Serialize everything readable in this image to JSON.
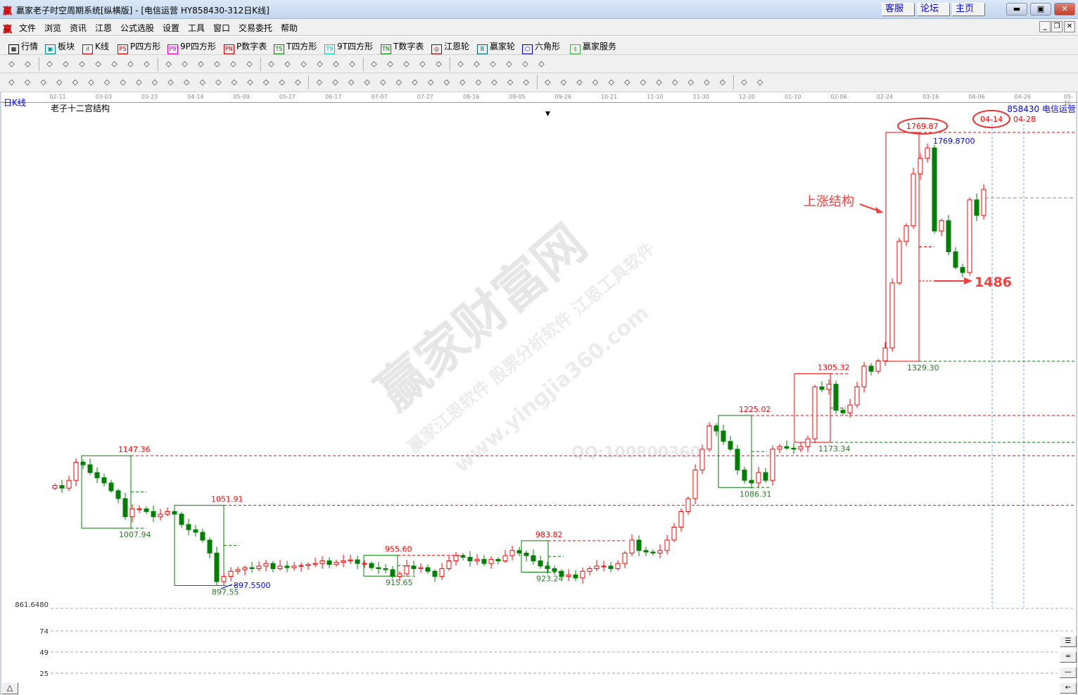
{
  "window": {
    "title": "赢家老子时空周期系统[纵横版] - [电信运营  HY858430-312日K线]",
    "logo": "赢",
    "links": [
      "客服",
      "论坛",
      "主页"
    ],
    "controls": [
      "minimize",
      "maximize",
      "close"
    ]
  },
  "menu": {
    "logo": "赢",
    "items": [
      "文件",
      "浏览",
      "资讯",
      "江恩",
      "公式选股",
      "设置",
      "工具",
      "窗口",
      "交易委托",
      "帮助"
    ]
  },
  "toolbar1": [
    {
      "label": "行情",
      "icon": "quote-table-icon",
      "tag": "▦"
    },
    {
      "label": "板块",
      "icon": "sector-grid-icon",
      "tag": "▣"
    },
    {
      "label": "K线",
      "icon": "candlestick-icon",
      "tag": "ıl"
    },
    {
      "label": "P四方形",
      "icon": "ps-icon",
      "tag": "PS"
    },
    {
      "label": "9P四方形",
      "icon": "p9-icon",
      "tag": "P9"
    },
    {
      "label": "P数字表",
      "icon": "pn-icon",
      "tag": "PN"
    },
    {
      "label": "T四方形",
      "icon": "ts-icon",
      "tag": "TS"
    },
    {
      "label": "9T四方形",
      "icon": "t9-icon",
      "tag": "T9"
    },
    {
      "label": "T数字表",
      "icon": "tn-icon",
      "tag": "TN"
    },
    {
      "label": "江恩轮",
      "icon": "gann-wheel-icon",
      "tag": "◎"
    },
    {
      "label": "赢家轮",
      "icon": "big-wheel-icon",
      "tag": "B"
    },
    {
      "label": "六角形",
      "icon": "hexagon-icon",
      "tag": "⬡"
    },
    {
      "label": "赢家服务",
      "icon": "dollar-icon",
      "tag": "$"
    }
  ],
  "toolbar2_icons": [
    "layout-icon",
    "dropdown-icon",
    "wheel-icon",
    "doc-icon",
    "chart-a-icon",
    "chart-b-icon",
    "chart-c-icon",
    "bar-icon",
    "dropdown-icon",
    "cycle-icon",
    "flag-icon",
    "first-icon",
    "last-icon",
    "prev-icon",
    "next-icon",
    "diamond-1-icon",
    "diamond-2-icon",
    "diamond-3-icon",
    "diamond-4-icon",
    "diamond-5-icon",
    "diamond-6-icon",
    "hand-icon",
    "crosshair-icon",
    "zigzag-icon",
    "gift-icon",
    "globe-icon",
    "calendar-icon",
    "calculator-icon",
    "notes-icon",
    "save-icon",
    "tools-icon",
    "truck-icon"
  ],
  "toolbar3_icons": [
    "pen-icon",
    "grid-icon",
    "fork-1-icon",
    "fork-2-icon",
    "fork-3-icon",
    "fork-4-icon",
    "fork-5-icon",
    "fan-icon",
    "circle-icon",
    "bars-icon",
    "fork-6-icon",
    "fork-7-icon",
    "spiral-icon",
    "star-icon",
    "box-icon",
    "angle-icon",
    "fork-8-icon",
    "fork-9-icon",
    "table-icon",
    "comb-icon",
    "square-icon",
    "lines-1-icon",
    "lines-2-icon",
    "lines-3-icon",
    "lines-4-icon",
    "curve-icon",
    "wave-icon",
    "grid-2-icon",
    "grid-3-icon",
    "hatch-icon",
    "ruler-icon",
    "percent-1-icon",
    "percent-icon",
    "lines-5-icon",
    "coin-1-icon",
    "coin-2-icon",
    "coin-3-icon",
    "coin-4-icon",
    "coin-5-icon",
    "lines-6-icon",
    "lines-7-icon",
    "lines-8-icon",
    "lines-9-icon",
    "table-2-icon",
    "trend-icon",
    "yinyang-icon",
    "infinity-icon"
  ],
  "chart": {
    "period": "日K线",
    "indicator": "老子十二宫结构",
    "stock": "858430 电信运营",
    "watermark": {
      "main": "赢家财富网",
      "sub": "赢家江恩软件 股票分析软件 江恩工具软件",
      "url": "www.yingjia360.com",
      "qq": "QQ:100800360"
    },
    "dropdown_marker": "▼",
    "bottom_button": "△",
    "right_buttons": [
      "zoom-3-icon",
      "zoom-2-icon",
      "zoom-1-icon",
      "back-icon"
    ]
  },
  "chart_data": {
    "type": "candlestick",
    "date_ticks": [
      "02-11",
      "03-03",
      "03-23",
      "04-14",
      "05-09",
      "05-27",
      "06-17",
      "07-07",
      "07-27",
      "08-16",
      "09-05",
      "09-26",
      "10-21",
      "11-10",
      "11-30",
      "12-20",
      "01-10",
      "02-06",
      "02-24",
      "03-16",
      "04-06",
      "04-26",
      "05-16"
    ],
    "price_axis_low_label": "861.6480",
    "ylim": [
      861.648,
      1769.87
    ],
    "closes": [
      1090,
      1085,
      1100,
      1135,
      1130,
      1115,
      1105,
      1095,
      1080,
      1065,
      1030,
      1045,
      1045,
      1040,
      1030,
      1035,
      1040,
      1035,
      1015,
      1005,
      1000,
      985,
      960,
      905,
      915,
      925,
      928,
      932,
      930,
      935,
      940,
      930,
      935,
      932,
      935,
      936,
      938,
      940,
      945,
      938,
      942,
      945,
      947,
      940,
      940,
      932,
      930,
      928,
      915,
      920,
      935,
      930,
      932,
      925,
      915,
      930,
      945,
      955,
      952,
      945,
      948,
      940,
      948,
      945,
      955,
      965,
      960,
      955,
      945,
      935,
      930,
      925,
      915,
      918,
      912,
      925,
      930,
      935,
      935,
      930,
      940,
      960,
      985,
      965,
      962,
      960,
      965,
      985,
      1010,
      1040,
      1065,
      1120,
      1160,
      1205,
      1195,
      1175,
      1160,
      1120,
      1100,
      1095,
      1115,
      1100,
      1160,
      1165,
      1162,
      1160,
      1165,
      1180,
      1280,
      1275,
      1285,
      1235,
      1230,
      1245,
      1280,
      1320,
      1310,
      1330,
      1355,
      1480,
      1560,
      1590,
      1690,
      1720,
      1740,
      1580,
      1600,
      1540,
      1510,
      1500,
      1640,
      1610,
      1660
    ],
    "boxes": [
      {
        "high": "1147.36",
        "low": "1007.94",
        "color": "#008000"
      },
      {
        "high": "1051.91",
        "low": "897.55",
        "color": "#008000"
      },
      {
        "high": "955.60",
        "low": "915.65",
        "color": "#008000"
      },
      {
        "high": "983.82",
        "low": "923.24",
        "color": "#008000"
      },
      {
        "high": "1225.02",
        "low": "1086.31",
        "color": "#008000"
      },
      {
        "high": "1305.32",
        "low": "1173.34",
        "color": "#ff0000"
      },
      {
        "high": "1769.87",
        "low": "1329.30",
        "color": "#ff0000"
      }
    ],
    "extreme_labels": {
      "low": "897.5500",
      "high": "1769.8700"
    },
    "annotations": {
      "structure": "上涨结构",
      "target": "1486",
      "date1": "04-14",
      "date2": "04-28"
    },
    "volume_axis": [
      "74",
      "49",
      "25"
    ],
    "colors": {
      "up": "#ff0000",
      "down": "#008000",
      "resistance": "#ff0000",
      "support": "#008000"
    }
  }
}
